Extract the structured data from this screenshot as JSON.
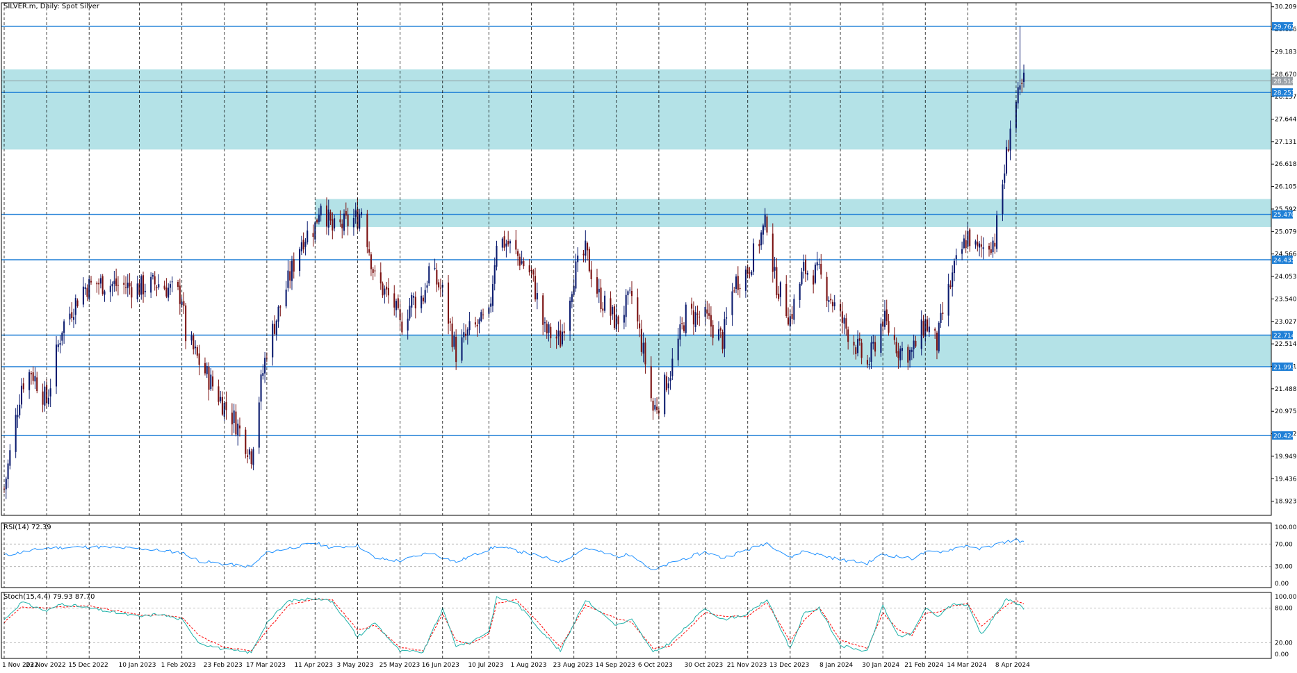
{
  "header": {
    "symbol_label": "SILVER.m, Daily:  Spot Silver"
  },
  "price_axis": {
    "ticks": [
      "30.209",
      "29.696",
      "29.183",
      "28.670",
      "28.157",
      "27.644",
      "27.131",
      "26.618",
      "26.105",
      "25.592",
      "25.079",
      "24.566",
      "24.053",
      "23.540",
      "23.027",
      "22.514",
      "22.001",
      "21.488",
      "20.975",
      "20.462",
      "19.949",
      "19.436",
      "18.923"
    ]
  },
  "time_axis": {
    "labels": [
      "1 Nov 2022",
      "23 Nov 2022",
      "15 Dec 2022",
      "10 Jan 2023",
      "1 Feb 2023",
      "23 Feb 2023",
      "17 Mar 2023",
      "11 Apr 2023",
      "3 May 2023",
      "25 May 2023",
      "16 Jun 2023",
      "10 Jul 2023",
      "1 Aug 2023",
      "23 Aug 2023",
      "14 Sep 2023",
      "6 Oct 2023",
      "30 Oct 2023",
      "21 Nov 2023",
      "13 Dec 2023",
      "8 Jan 2024",
      "30 Jan 2024",
      "21 Feb 2024",
      "14 Mar 2024",
      "8 Apr 2024"
    ]
  },
  "levels": [
    {
      "price": 29.762,
      "label": "29.762"
    },
    {
      "price": 28.253,
      "label": "28.253"
    },
    {
      "price": 25.47,
      "label": "25.470"
    },
    {
      "price": 24.435,
      "label": "24.435"
    },
    {
      "price": 22.714,
      "label": "22.714"
    },
    {
      "price": 21.993,
      "label": "21.993"
    },
    {
      "price": 20.424,
      "label": "20.424"
    }
  ],
  "current_price": {
    "price": 28.514,
    "label": "28.514"
  },
  "zones": [
    {
      "from_date": "1 Nov 2022",
      "high": 28.78,
      "low": 26.95
    },
    {
      "from_date": "11 Apr 2023",
      "high": 25.82,
      "low": 25.18
    },
    {
      "from_date": "25 May 2023",
      "high": 22.714,
      "low": 21.993
    }
  ],
  "colors": {
    "bull": "#0a1a6e",
    "bear": "#7a1010",
    "level_line": "#1f7fd6",
    "zone_fill": "#b0e0e6",
    "rsi_line": "#1e90ff",
    "stoch_main": "#20b2aa",
    "stoch_signal": "#ff0000",
    "grid": "#000000"
  },
  "rsi_panel": {
    "label": "RSI(14) 72.39",
    "ticks": [
      "100.00",
      "70.00",
      "30.00",
      "0.00"
    ]
  },
  "stoch_panel": {
    "label": "Stoch(15,4,4) 79.93 87.70",
    "ticks": [
      "100.00",
      "80.00",
      "20.00",
      "0.00"
    ]
  },
  "chart_data": {
    "type": "candlestick",
    "title": "SILVER.m, Daily:  Spot Silver",
    "ylim": [
      18.6,
      30.3
    ],
    "x_range": [
      "1 Nov 2022",
      "12 Apr 2024"
    ],
    "grid": true,
    "close_path": [
      [
        "1 Nov 2022",
        19.2
      ],
      [
        "10 Nov 2022",
        21.6
      ],
      [
        "15 Nov 2022",
        21.9
      ],
      [
        "23 Nov 2022",
        21.2
      ],
      [
        "1 Dec 2022",
        22.9
      ],
      [
        "12 Dec 2022",
        23.8
      ],
      [
        "20 Dec 2022",
        23.9
      ],
      [
        "10 Jan 2023",
        23.8
      ],
      [
        "20 Jan 2023",
        23.9
      ],
      [
        "1 Feb 2023",
        23.6
      ],
      [
        "3 Feb 2023",
        22.7
      ],
      [
        "10 Feb 2023",
        22.1
      ],
      [
        "23 Feb 2023",
        21.1
      ],
      [
        "28 Feb 2023",
        20.8
      ],
      [
        "9 Mar 2023",
        20.0
      ],
      [
        "14 Mar 2023",
        21.6
      ],
      [
        "17 Mar 2023",
        22.4
      ],
      [
        "22 Mar 2023",
        23.1
      ],
      [
        "4 Apr 2023",
        24.9
      ],
      [
        "11 Apr 2023",
        25.2
      ],
      [
        "14 Apr 2023",
        25.8
      ],
      [
        "20 Apr 2023",
        25.1
      ],
      [
        "3 May 2023",
        25.4
      ],
      [
        "5 May 2023",
        25.6
      ],
      [
        "12 May 2023",
        24.0
      ],
      [
        "22 May 2023",
        23.4
      ],
      [
        "25 May 2023",
        22.9
      ],
      [
        "31 May 2023",
        23.5
      ],
      [
        "6 Jun 2023",
        23.6
      ],
      [
        "9 Jun 2023",
        24.2
      ],
      [
        "16 Jun 2023",
        23.7
      ],
      [
        "23 Jun 2023",
        22.3
      ],
      [
        "30 Jun 2023",
        22.8
      ],
      [
        "10 Jul 2023",
        23.1
      ],
      [
        "14 Jul 2023",
        24.9
      ],
      [
        "20 Jul 2023",
        24.8
      ],
      [
        "1 Aug 2023",
        24.1
      ],
      [
        "8 Aug 2023",
        22.8
      ],
      [
        "16 Aug 2023",
        22.6
      ],
      [
        "23 Aug 2023",
        24.1
      ],
      [
        "29 Aug 2023",
        24.6
      ],
      [
        "5 Sep 2023",
        23.6
      ],
      [
        "14 Sep 2023",
        23.0
      ],
      [
        "22 Sep 2023",
        23.6
      ],
      [
        "29 Sep 2023",
        22.1
      ],
      [
        "3 Oct 2023",
        21.0
      ],
      [
        "6 Oct 2023",
        21.2
      ],
      [
        "12 Oct 2023",
        21.9
      ],
      [
        "20 Oct 2023",
        23.2
      ],
      [
        "30 Oct 2023",
        23.1
      ],
      [
        "8 Nov 2023",
        22.6
      ],
      [
        "14 Nov 2023",
        23.9
      ],
      [
        "21 Nov 2023",
        24.2
      ],
      [
        "28 Nov 2023",
        25.0
      ],
      [
        "1 Dec 2023",
        25.3
      ],
      [
        "5 Dec 2023",
        24.0
      ],
      [
        "13 Dec 2023",
        23.1
      ],
      [
        "20 Dec 2023",
        24.2
      ],
      [
        "28 Dec 2023",
        24.1
      ],
      [
        "8 Jan 2024",
        23.1
      ],
      [
        "17 Jan 2024",
        22.4
      ],
      [
        "22 Jan 2024",
        22.0
      ],
      [
        "30 Jan 2024",
        23.1
      ],
      [
        "7 Feb 2024",
        22.4
      ],
      [
        "14 Feb 2024",
        22.3
      ],
      [
        "21 Feb 2024",
        23.0
      ],
      [
        "27 Feb 2024",
        22.5
      ],
      [
        "1 Mar 2024",
        23.2
      ],
      [
        "7 Mar 2024",
        24.2
      ],
      [
        "14 Mar 2024",
        25.0
      ],
      [
        "19 Mar 2024",
        24.6
      ],
      [
        "21 Mar 2024",
        24.7
      ],
      [
        "28 Mar 2024",
        24.9
      ],
      [
        "3 Apr 2024",
        26.8
      ],
      [
        "5 Apr 2024",
        27.5
      ],
      [
        "8 Apr 2024",
        28.0
      ],
      [
        "10 Apr 2024",
        28.2
      ],
      [
        "12 Apr 2024",
        28.5
      ]
    ],
    "rsi_path": [
      [
        "1 Nov 2022",
        50
      ],
      [
        "23 Nov 2022",
        63
      ],
      [
        "15 Dec 2022",
        65
      ],
      [
        "10 Jan 2023",
        62
      ],
      [
        "1 Feb 2023",
        55
      ],
      [
        "10 Feb 2023",
        40
      ],
      [
        "23 Feb 2023",
        34
      ],
      [
        "9 Mar 2023",
        30
      ],
      [
        "17 Mar 2023",
        55
      ],
      [
        "11 Apr 2023",
        72
      ],
      [
        "20 Apr 2023",
        63
      ],
      [
        "3 May 2023",
        68
      ],
      [
        "12 May 2023",
        45
      ],
      [
        "25 May 2023",
        40
      ],
      [
        "9 Jun 2023",
        55
      ],
      [
        "23 Jun 2023",
        38
      ],
      [
        "14 Jul 2023",
        66
      ],
      [
        "1 Aug 2023",
        52
      ],
      [
        "16 Aug 2023",
        38
      ],
      [
        "29 Aug 2023",
        63
      ],
      [
        "14 Sep 2023",
        48
      ],
      [
        "22 Sep 2023",
        52
      ],
      [
        "3 Oct 2023",
        22
      ],
      [
        "12 Oct 2023",
        36
      ],
      [
        "30 Oct 2023",
        56
      ],
      [
        "8 Nov 2023",
        45
      ],
      [
        "21 Nov 2023",
        60
      ],
      [
        "1 Dec 2023",
        72
      ],
      [
        "13 Dec 2023",
        46
      ],
      [
        "20 Dec 2023",
        58
      ],
      [
        "8 Jan 2024",
        42
      ],
      [
        "22 Jan 2024",
        36
      ],
      [
        "30 Jan 2024",
        52
      ],
      [
        "14 Feb 2024",
        44
      ],
      [
        "21 Feb 2024",
        55
      ],
      [
        "1 Mar 2024",
        57
      ],
      [
        "14 Mar 2024",
        68
      ],
      [
        "19 Mar 2024",
        60
      ],
      [
        "21 Mar 2024",
        62
      ],
      [
        "3 Apr 2024",
        74
      ],
      [
        "8 Apr 2024",
        78
      ],
      [
        "12 Apr 2024",
        72.39
      ]
    ],
    "stoch_main_path": [
      [
        "1 Nov 2022",
        60
      ],
      [
        "10 Nov 2022",
        90
      ],
      [
        "23 Nov 2022",
        75
      ],
      [
        "1 Dec 2022",
        88
      ],
      [
        "15 Dec 2022",
        80
      ],
      [
        "10 Jan 2023",
        65
      ],
      [
        "20 Jan 2023",
        70
      ],
      [
        "1 Feb 2023",
        60
      ],
      [
        "10 Feb 2023",
        20
      ],
      [
        "23 Feb 2023",
        8
      ],
      [
        "9 Mar 2023",
        3
      ],
      [
        "17 Mar 2023",
        55
      ],
      [
        "28 Mar 2023",
        92
      ],
      [
        "11 Apr 2023",
        97
      ],
      [
        "20 Apr 2023",
        92
      ],
      [
        "3 May 2023",
        30
      ],
      [
        "12 May 2023",
        55
      ],
      [
        "25 May 2023",
        5
      ],
      [
        "6 Jun 2023",
        4
      ],
      [
        "16 Jun 2023",
        78
      ],
      [
        "23 Jun 2023",
        15
      ],
      [
        "30 Jun 2023",
        20
      ],
      [
        "10 Jul 2023",
        40
      ],
      [
        "14 Jul 2023",
        98
      ],
      [
        "24 Jul 2023",
        90
      ],
      [
        "1 Aug 2023",
        60
      ],
      [
        "16 Aug 2023",
        5
      ],
      [
        "29 Aug 2023",
        95
      ],
      [
        "14 Sep 2023",
        50
      ],
      [
        "22 Sep 2023",
        60
      ],
      [
        "3 Oct 2023",
        3
      ],
      [
        "12 Oct 2023",
        20
      ],
      [
        "30 Oct 2023",
        80
      ],
      [
        "8 Nov 2023",
        60
      ],
      [
        "21 Nov 2023",
        70
      ],
      [
        "1 Dec 2023",
        95
      ],
      [
        "13 Dec 2023",
        10
      ],
      [
        "20 Dec 2023",
        70
      ],
      [
        "28 Dec 2023",
        80
      ],
      [
        "8 Jan 2024",
        15
      ],
      [
        "22 Jan 2024",
        5
      ],
      [
        "30 Jan 2024",
        85
      ],
      [
        "7 Feb 2024",
        30
      ],
      [
        "14 Feb 2024",
        35
      ],
      [
        "21 Feb 2024",
        80
      ],
      [
        "27 Feb 2024",
        65
      ],
      [
        "7 Mar 2024",
        88
      ],
      [
        "14 Mar 2024",
        85
      ],
      [
        "21 Mar 2024",
        35
      ],
      [
        "3 Apr 2024",
        95
      ],
      [
        "8 Apr 2024",
        90
      ],
      [
        "12 Apr 2024",
        79.93
      ]
    ],
    "stoch_signal_path": [
      [
        "1 Nov 2022",
        55
      ],
      [
        "10 Nov 2022",
        82
      ],
      [
        "23 Nov 2022",
        80
      ],
      [
        "1 Dec 2022",
        82
      ],
      [
        "15 Dec 2022",
        84
      ],
      [
        "10 Jan 2023",
        68
      ],
      [
        "20 Jan 2023",
        68
      ],
      [
        "1 Feb 2023",
        64
      ],
      [
        "10 Feb 2023",
        32
      ],
      [
        "23 Feb 2023",
        12
      ],
      [
        "9 Mar 2023",
        6
      ],
      [
        "17 Mar 2023",
        40
      ],
      [
        "28 Mar 2023",
        85
      ],
      [
        "11 Apr 2023",
        96
      ],
      [
        "20 Apr 2023",
        94
      ],
      [
        "3 May 2023",
        42
      ],
      [
        "12 May 2023",
        50
      ],
      [
        "25 May 2023",
        12
      ],
      [
        "6 Jun 2023",
        6
      ],
      [
        "16 Jun 2023",
        70
      ],
      [
        "23 Jun 2023",
        25
      ],
      [
        "30 Jun 2023",
        18
      ],
      [
        "10 Jul 2023",
        35
      ],
      [
        "14 Jul 2023",
        88
      ],
      [
        "24 Jul 2023",
        95
      ],
      [
        "1 Aug 2023",
        68
      ],
      [
        "16 Aug 2023",
        12
      ],
      [
        "29 Aug 2023",
        85
      ],
      [
        "14 Sep 2023",
        62
      ],
      [
        "22 Sep 2023",
        55
      ],
      [
        "3 Oct 2023",
        10
      ],
      [
        "12 Oct 2023",
        14
      ],
      [
        "30 Oct 2023",
        72
      ],
      [
        "8 Nov 2023",
        66
      ],
      [
        "21 Nov 2023",
        66
      ],
      [
        "1 Dec 2023",
        90
      ],
      [
        "13 Dec 2023",
        22
      ],
      [
        "20 Dec 2023",
        58
      ],
      [
        "28 Dec 2023",
        82
      ],
      [
        "8 Jan 2024",
        25
      ],
      [
        "22 Jan 2024",
        10
      ],
      [
        "30 Jan 2024",
        72
      ],
      [
        "7 Feb 2024",
        42
      ],
      [
        "14 Feb 2024",
        33
      ],
      [
        "21 Feb 2024",
        72
      ],
      [
        "27 Feb 2024",
        72
      ],
      [
        "7 Mar 2024",
        85
      ],
      [
        "14 Mar 2024",
        88
      ],
      [
        "21 Mar 2024",
        48
      ],
      [
        "3 Apr 2024",
        85
      ],
      [
        "8 Apr 2024",
        93
      ],
      [
        "12 Apr 2024",
        87.7
      ]
    ]
  }
}
